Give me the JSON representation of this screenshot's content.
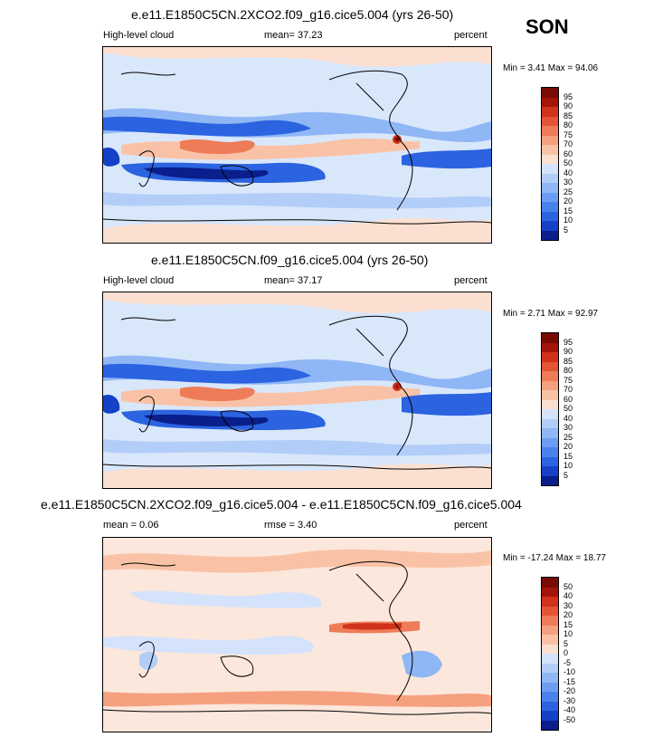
{
  "season": "SON",
  "palette_abs": [
    "#0a1e8c",
    "#1540c8",
    "#2b63e0",
    "#4a82ec",
    "#6c9df2",
    "#8fb6f5",
    "#b2cdf8",
    "#d4e3fb",
    "#fbe0d2",
    "#f9c2a6",
    "#f5a07e",
    "#ee7c58",
    "#e35534",
    "#d0321a",
    "#a41509",
    "#7a0a04"
  ],
  "palette_diff": [
    "#0a1e8c",
    "#1540c8",
    "#2b63e0",
    "#4a82ec",
    "#6c9df2",
    "#8fb6f5",
    "#b2cdf8",
    "#d4e3fb",
    "#fbe0d2",
    "#f9c2a6",
    "#f5a07e",
    "#ee7c58",
    "#e35534",
    "#d0321a",
    "#a41509",
    "#7a0a04"
  ],
  "panels": [
    {
      "title": "e.e11.E1850C5CN.2XCO2.f09_g16.cice5.004 (yrs 26-50)",
      "left_label": "High-level cloud",
      "center_label": "mean=  37.23",
      "right_label": "percent",
      "minmax": "Min =   3.41 Max =  94.06",
      "levels": [
        "95",
        "90",
        "85",
        "80",
        "75",
        "70",
        "60",
        "50",
        "40",
        "30",
        "25",
        "20",
        "15",
        "10",
        "5"
      ]
    },
    {
      "title": "e.e11.E1850C5CN.f09_g16.cice5.004 (yrs 26-50)",
      "left_label": "High-level cloud",
      "center_label": "mean=  37.17",
      "right_label": "percent",
      "minmax": "Min =   2.71 Max =  92.97",
      "levels": [
        "95",
        "90",
        "85",
        "80",
        "75",
        "70",
        "60",
        "50",
        "40",
        "30",
        "25",
        "20",
        "15",
        "10",
        "5"
      ]
    },
    {
      "title": "e.e11.E1850C5CN.2XCO2.f09_g16.cice5.004 - e.e11.E1850C5CN.f09_g16.cice5.004",
      "left_label": "mean =   0.06",
      "center_label": "rmse =   3.40",
      "right_label": "percent",
      "minmax": "Min = -17.24 Max =  18.77",
      "levels": [
        "50",
        "40",
        "30",
        "20",
        "15",
        "10",
        "5",
        "0",
        "-5",
        "-10",
        "-15",
        "-20",
        "-30",
        "-40",
        "-50"
      ]
    }
  ],
  "chart_data": [
    {
      "type": "heatmap",
      "title": "e.e11.E1850C5CN.2XCO2.f09_g16.cice5.004 (yrs 26-50)",
      "variable": "High-level cloud",
      "units": "percent",
      "mean": 37.23,
      "min": 3.41,
      "max": 94.06,
      "levels": [
        5,
        10,
        15,
        20,
        25,
        30,
        40,
        50,
        60,
        70,
        75,
        80,
        85,
        90,
        95
      ]
    },
    {
      "type": "heatmap",
      "title": "e.e11.E1850C5CN.f09_g16.cice5.004 (yrs 26-50)",
      "variable": "High-level cloud",
      "units": "percent",
      "mean": 37.17,
      "min": 2.71,
      "max": 92.97,
      "levels": [
        5,
        10,
        15,
        20,
        25,
        30,
        40,
        50,
        60,
        70,
        75,
        80,
        85,
        90,
        95
      ]
    },
    {
      "type": "heatmap",
      "title": "e.e11.E1850C5CN.2XCO2.f09_g16.cice5.004 - e.e11.E1850C5CN.f09_g16.cice5.004",
      "units": "percent",
      "mean": 0.06,
      "rmse": 3.4,
      "min": -17.24,
      "max": 18.77,
      "levels": [
        -50,
        -40,
        -30,
        -20,
        -15,
        -10,
        -5,
        0,
        5,
        10,
        15,
        20,
        30,
        40,
        50
      ]
    }
  ]
}
